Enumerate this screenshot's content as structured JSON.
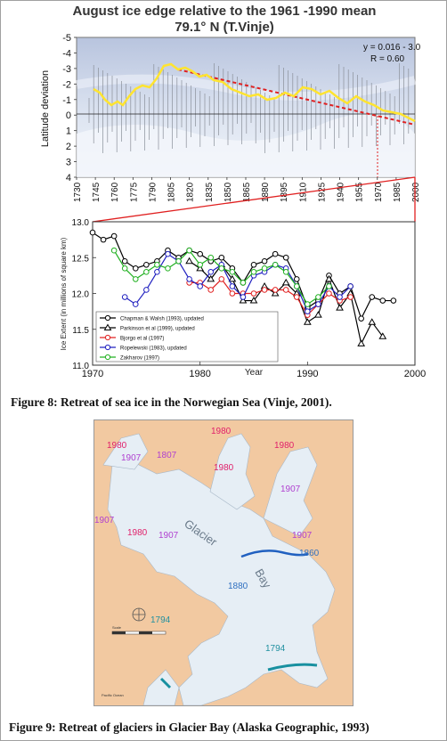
{
  "top_chart": {
    "title": "August ice edge relative to the 1961 -1990 mean",
    "subtitle": "79.1° N (T.Vinje)",
    "ylabel": "Latitude deviation",
    "equation": "y = 0.016 - 3.0",
    "r_value": "R = 0.60",
    "y_ticks": [
      "-5",
      "-4",
      "-3",
      "-2",
      "-1",
      "0",
      "1",
      "2",
      "3",
      "4"
    ],
    "x_ticks": [
      "1730",
      "1745",
      "1760",
      "1775",
      "1790",
      "1805",
      "1820",
      "1835",
      "1850",
      "1865",
      "1880",
      "1895",
      "1910",
      "1925",
      "1940",
      "1955",
      "1970",
      "1985",
      "2000"
    ]
  },
  "chart_data": {
    "type": "line",
    "xlabel": "Year",
    "ylabel": "Ice Extent (in millions of square km)",
    "xlim": [
      1970,
      2000
    ],
    "ylim": [
      11.0,
      13.0
    ],
    "x_ticks": [
      "1970",
      "1980",
      "1990",
      "2000"
    ],
    "y_ticks": [
      "11.0",
      "11.5",
      "12.0",
      "12.5",
      "13.0"
    ],
    "legend_position": "bottom-left",
    "series": [
      {
        "name": "Chapman & Walsh (1993), updated",
        "color": "#000000",
        "marker": "circle",
        "x": [
          1970,
          1971,
          1972,
          1973,
          1974,
          1975,
          1976,
          1977,
          1978,
          1979,
          1980,
          1981,
          1982,
          1983,
          1984,
          1985,
          1986,
          1987,
          1988,
          1989,
          1990,
          1991,
          1992,
          1993,
          1994,
          1995,
          1996,
          1997,
          1998
        ],
        "y": [
          12.85,
          12.75,
          12.8,
          12.45,
          12.35,
          12.4,
          12.45,
          12.6,
          12.5,
          12.6,
          12.55,
          12.45,
          12.5,
          12.35,
          12.15,
          12.4,
          12.45,
          12.55,
          12.5,
          12.2,
          11.8,
          11.9,
          12.25,
          12.0,
          12.1,
          11.65,
          11.95,
          11.9,
          11.9
        ]
      },
      {
        "name": "Parkinson et al (1999), updated",
        "color": "#000000",
        "marker": "triangle",
        "x": [
          1979,
          1980,
          1981,
          1982,
          1983,
          1984,
          1985,
          1986,
          1987,
          1988,
          1989,
          1990,
          1991,
          1992,
          1993,
          1994,
          1995,
          1996,
          1997
        ],
        "y": [
          12.45,
          12.35,
          12.2,
          12.4,
          12.2,
          11.9,
          11.9,
          12.1,
          12.0,
          12.15,
          12.0,
          11.6,
          11.7,
          12.2,
          11.8,
          12.0,
          11.3,
          11.6,
          11.4
        ]
      },
      {
        "name": "Bjorgo et al (1997)",
        "color": "#e02020",
        "marker": "circle",
        "x": [
          1979,
          1980,
          1981,
          1982,
          1983,
          1984,
          1985,
          1986,
          1987,
          1988,
          1989,
          1990,
          1991,
          1992,
          1993,
          1994
        ],
        "y": [
          12.15,
          12.15,
          12.05,
          12.2,
          12.0,
          12.0,
          12.0,
          12.05,
          12.05,
          12.05,
          11.95,
          11.7,
          11.85,
          12.0,
          11.9,
          11.95
        ]
      },
      {
        "name": "Ropelewski (1983), updated",
        "color": "#2020c0",
        "marker": "circle",
        "x": [
          1973,
          1974,
          1975,
          1976,
          1977,
          1978,
          1979,
          1980,
          1981,
          1982,
          1983,
          1984,
          1985,
          1986,
          1987,
          1988,
          1989,
          1990,
          1991,
          1992,
          1993,
          1994
        ],
        "y": [
          11.95,
          11.85,
          12.05,
          12.3,
          12.55,
          12.45,
          12.2,
          12.1,
          12.3,
          12.4,
          12.1,
          11.95,
          12.25,
          12.3,
          12.4,
          12.35,
          12.1,
          11.75,
          11.85,
          12.1,
          11.95,
          12.1
        ]
      },
      {
        "name": "Zakharov (1997)",
        "color": "#20b020",
        "marker": "circle",
        "x": [
          1972,
          1973,
          1974,
          1975,
          1976,
          1977,
          1978,
          1979,
          1980,
          1981,
          1982,
          1983,
          1984,
          1985,
          1986,
          1987,
          1988,
          1989,
          1990,
          1991,
          1992
        ],
        "y": [
          12.6,
          12.35,
          12.2,
          12.3,
          12.4,
          12.35,
          12.45,
          12.6,
          12.4,
          12.5,
          12.35,
          12.3,
          12.15,
          12.3,
          12.35,
          12.4,
          12.3,
          12.1,
          11.85,
          11.95,
          12.1
        ]
      }
    ]
  },
  "captions": {
    "fig8": "Figure 8: Retreat of sea ice in the Norwegian Sea (Vinje, 2001).",
    "fig9": "Figure 9: Retreat of glaciers in Glacier Bay (Alaska Geographic, 1993)"
  },
  "map": {
    "labels": [
      {
        "text": "1980",
        "color": "#e0206a"
      },
      {
        "text": "1907",
        "color": "#b040d0"
      },
      {
        "text": "1807",
        "color": "#b040d0"
      },
      {
        "text": "1980",
        "color": "#e0206a"
      },
      {
        "text": "1980",
        "color": "#e0206a"
      },
      {
        "text": "1980",
        "color": "#e0206a"
      },
      {
        "text": "1907",
        "color": "#b040d0"
      },
      {
        "text": "1907",
        "color": "#b040d0"
      },
      {
        "text": "1980",
        "color": "#e0206a"
      },
      {
        "text": "1907",
        "color": "#b040d0"
      },
      {
        "text": "1907",
        "color": "#b040d0"
      },
      {
        "text": "1860",
        "color": "#3070c0"
      },
      {
        "text": "1880",
        "color": "#3070c0"
      },
      {
        "text": "1794",
        "color": "#2090a0"
      },
      {
        "text": "1794",
        "color": "#2090a0"
      }
    ],
    "water_label_1": "Glacier",
    "water_label_2": "Bay",
    "scale_label": "Scale",
    "ocean_label": "Pacific Ocean"
  }
}
